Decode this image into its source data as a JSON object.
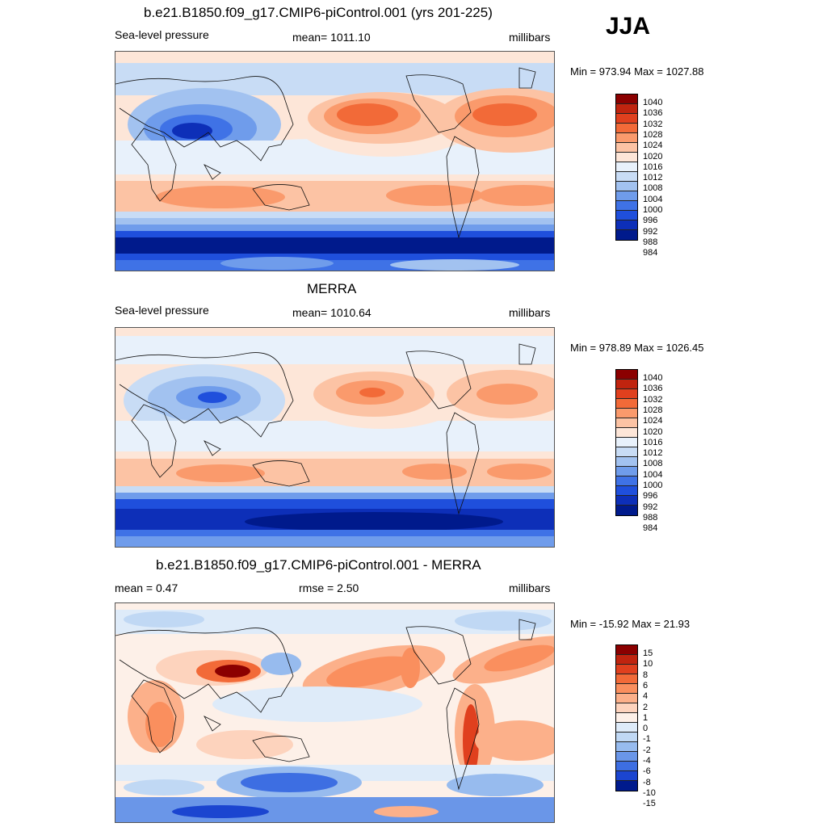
{
  "season": "JJA",
  "panels": [
    {
      "id": "model",
      "title": "b.e21.B1850.f09_g17.CMIP6-piControl.001 (yrs 201-225)",
      "left_label": "Sea-level pressure",
      "center_label": "mean= 1011.10",
      "right_label": "millibars",
      "minmax": "Min = 973.94 Max = 1027.88",
      "levels": [
        "1040",
        "1036",
        "1032",
        "1028",
        "1024",
        "1020",
        "1016",
        "1012",
        "1008",
        "1004",
        "1000",
        "996",
        "992",
        "988",
        "984"
      ],
      "colors": [
        "#8b0000",
        "#c0240f",
        "#e0401e",
        "#f26a38",
        "#fa9a6c",
        "#fcc3a4",
        "#fde6d8",
        "#e8f1fb",
        "#c8dcf5",
        "#a2c2f0",
        "#6f9ceb",
        "#3f72e6",
        "#1f4fdc",
        "#0d2fb8",
        "#001a8c"
      ]
    },
    {
      "id": "obs",
      "title": "MERRA",
      "left_label": "Sea-level pressure",
      "center_label": "mean= 1010.64",
      "right_label": "millibars",
      "minmax": "Min = 978.89 Max = 1026.45",
      "levels": [
        "1040",
        "1036",
        "1032",
        "1028",
        "1024",
        "1020",
        "1016",
        "1012",
        "1008",
        "1004",
        "1000",
        "996",
        "992",
        "988",
        "984"
      ],
      "colors": [
        "#8b0000",
        "#c0240f",
        "#e0401e",
        "#f26a38",
        "#fa9a6c",
        "#fcc3a4",
        "#fde6d8",
        "#e8f1fb",
        "#c8dcf5",
        "#a2c2f0",
        "#6f9ceb",
        "#3f72e6",
        "#1f4fdc",
        "#0d2fb8",
        "#001a8c"
      ]
    },
    {
      "id": "diff",
      "title": "b.e21.B1850.f09_g17.CMIP6-piControl.001 - MERRA",
      "left_label": "mean =   0.47",
      "center_label": "rmse =   2.50",
      "right_label": "millibars",
      "minmax": "Min = -15.92 Max =  21.93",
      "levels": [
        "15",
        "10",
        "8",
        "6",
        "4",
        "2",
        "1",
        "0",
        "-1",
        "-2",
        "-4",
        "-6",
        "-8",
        "-10",
        "-15"
      ],
      "colors": [
        "#8b0000",
        "#c0240f",
        "#e0401e",
        "#f26a38",
        "#fa8f5e",
        "#fcb08a",
        "#fdd3bd",
        "#fdf0e8",
        "#deebf9",
        "#c0d8f4",
        "#97bbee",
        "#6a96e8",
        "#3d6ee2",
        "#1b45d0",
        "#001a8c"
      ]
    }
  ]
}
